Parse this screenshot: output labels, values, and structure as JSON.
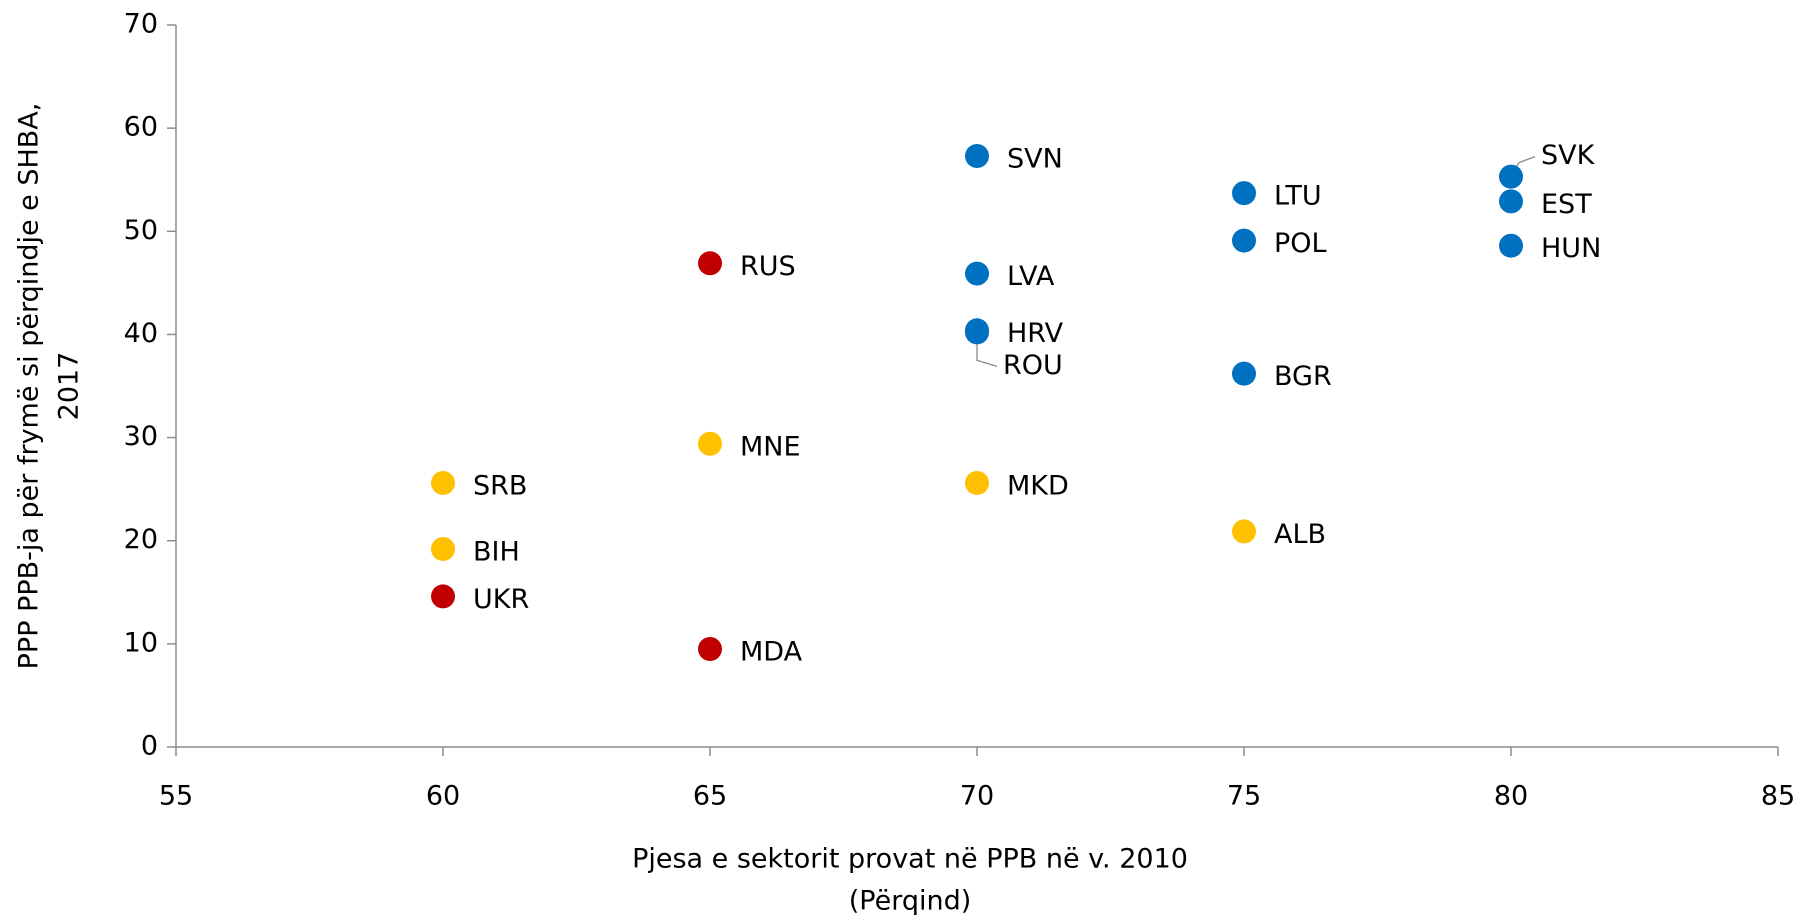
{
  "chart_data": {
    "type": "scatter",
    "xlabel": [
      "Pjesa e sektorit provat në PPB në v. 2010",
      "(Përqind)"
    ],
    "ylabel": [
      "PPP PPB-ja për frymë si përqindje e SHBA,",
      "2017"
    ],
    "xlim": [
      55,
      85
    ],
    "xticks": [
      55,
      60,
      65,
      70,
      75,
      80,
      85
    ],
    "ylim": [
      0,
      70
    ],
    "yticks": [
      0,
      10,
      20,
      30,
      40,
      50,
      60,
      70
    ],
    "grid": false,
    "series": [
      {
        "color": "#0070c0",
        "labels": [
          "SVN",
          "LTU",
          "POL",
          "BGR",
          "LVA",
          "HRV",
          "ROU",
          "SVK",
          "EST",
          "HUN"
        ],
        "x": [
          70,
          75,
          75,
          75,
          70,
          70,
          70,
          80,
          80,
          80
        ],
        "values": [
          57.3,
          53.7,
          49.1,
          36.2,
          45.9,
          40.4,
          40.2,
          55.3,
          52.9,
          48.6
        ]
      },
      {
        "color": "#ffc000",
        "labels": [
          "SRB",
          "BIH",
          "MNE",
          "MKD",
          "ALB"
        ],
        "x": [
          60,
          60,
          65,
          70,
          75
        ],
        "values": [
          25.6,
          19.2,
          29.4,
          25.6,
          20.9
        ]
      },
      {
        "color": "#c00000",
        "labels": [
          "RUS",
          "UKR",
          "MDA"
        ],
        "x": [
          65,
          60,
          65
        ],
        "values": [
          46.9,
          14.6,
          9.5
        ]
      }
    ]
  }
}
